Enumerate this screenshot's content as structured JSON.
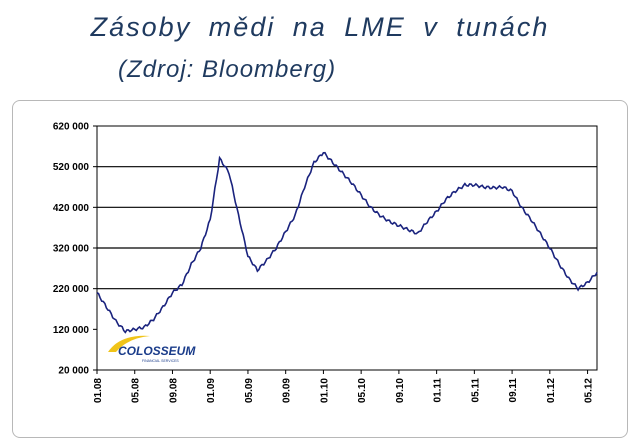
{
  "title": "Zásoby mědi na LME v tunách",
  "subtitle": "(Zdroj: Bloomberg)",
  "logo": {
    "text": "COLOSSEUM",
    "subtext": "FINANCIAL SERVICES",
    "color": "#1a3c8a",
    "swoosh_color": "#f0c419"
  },
  "colors": {
    "line": "#1a237e",
    "grid": "#000000",
    "frame": "#b8b8b8",
    "title": "#1f3a5f"
  },
  "chart_data": {
    "type": "line",
    "title": "Zásoby mědi na LME v tunách",
    "xlabel": "",
    "ylabel": "",
    "ylim": [
      20000,
      620000
    ],
    "y_ticks": [
      "620 000",
      "520 000",
      "420 000",
      "320 000",
      "220 000",
      "120 000",
      "20 000"
    ],
    "y_tick_values": [
      620000,
      520000,
      420000,
      320000,
      220000,
      120000,
      20000
    ],
    "x_ticks": [
      "01.08",
      "05.08",
      "09.08",
      "01.09",
      "05.09",
      "09.09",
      "01.10",
      "05.10",
      "09.10",
      "01.11",
      "05.11",
      "09.11",
      "01.12",
      "05.12"
    ],
    "x_range_months": [
      "01.08",
      "06.12"
    ],
    "grid": "horizontal at 220 000, 320 000, 420 000, 520 000",
    "series": [
      {
        "name": "",
        "x": [
          "01.08",
          "02.08",
          "03.08",
          "04.08",
          "05.08",
          "06.08",
          "07.08",
          "08.08",
          "09.08",
          "10.08",
          "11.08",
          "12.08",
          "01.09",
          "02.09",
          "03.09",
          "04.09",
          "05.09",
          "06.09",
          "07.09",
          "08.09",
          "09.09",
          "10.09",
          "11.09",
          "12.09",
          "01.10",
          "02.10",
          "03.10",
          "04.10",
          "05.10",
          "06.10",
          "07.10",
          "08.10",
          "09.10",
          "10.10",
          "11.10",
          "12.10",
          "01.11",
          "02.11",
          "03.11",
          "04.11",
          "05.11",
          "06.11",
          "07.11",
          "08.11",
          "09.11",
          "10.11",
          "11.11",
          "12.11",
          "01.12",
          "02.12",
          "03.12",
          "04.12",
          "05.12",
          "06.12"
        ],
        "values": [
          210000,
          175000,
          140000,
          115000,
          120000,
          125000,
          145000,
          175000,
          210000,
          230000,
          280000,
          320000,
          390000,
          540000,
          505000,
          400000,
          300000,
          265000,
          290000,
          320000,
          360000,
          400000,
          470000,
          530000,
          555000,
          530000,
          505000,
          480000,
          450000,
          420000,
          400000,
          385000,
          375000,
          365000,
          355000,
          385000,
          410000,
          440000,
          460000,
          475000,
          475000,
          470000,
          468000,
          470000,
          460000,
          420000,
          390000,
          355000,
          320000,
          280000,
          245000,
          220000,
          235000,
          260000
        ]
      }
    ]
  }
}
